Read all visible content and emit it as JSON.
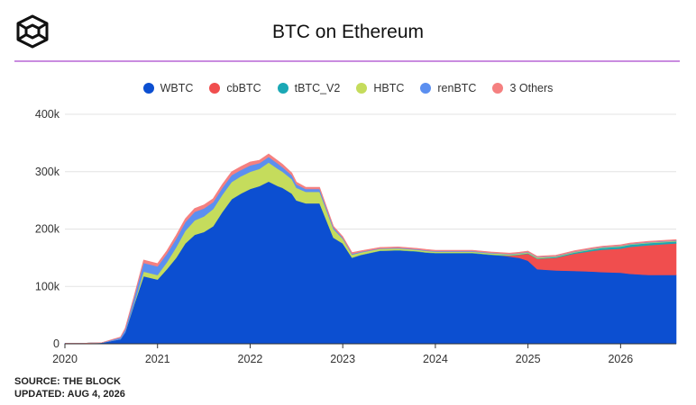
{
  "title": "BTC on Ethereum",
  "footer": {
    "source": "SOURCE: THE BLOCK",
    "updated": "UPDATED: AUG 4, 2026"
  },
  "colors": {
    "WBTC": "#0c4fd1",
    "cbBTC": "#f04e4e",
    "tBTC_V2": "#1aa8b5",
    "HBTC": "#c5dc5c",
    "renBTC": "#5b8ff0",
    "3 Others": "#f58080",
    "grid": "#e3e3e3",
    "accent_rule": "#c98ce0"
  },
  "chart_data": {
    "type": "area",
    "stacked": true,
    "title": "BTC on Ethereum",
    "xlabel": "",
    "ylabel": "",
    "ylim": [
      0,
      400000
    ],
    "xlim": [
      2020.0,
      2026.6
    ],
    "grid": true,
    "legend_position": "top",
    "y_ticks": [
      {
        "v": 0,
        "label": "0"
      },
      {
        "v": 100000,
        "label": "100k"
      },
      {
        "v": 200000,
        "label": "200k"
      },
      {
        "v": 300000,
        "label": "300k"
      },
      {
        "v": 400000,
        "label": "400k"
      }
    ],
    "x_ticks": [
      "2020",
      "2021",
      "2022",
      "2023",
      "2024",
      "2025",
      "2026"
    ],
    "x": [
      2020.0,
      2020.2,
      2020.4,
      2020.6,
      2020.65,
      2020.75,
      2020.85,
      2021.0,
      2021.1,
      2021.2,
      2021.3,
      2021.4,
      2021.5,
      2021.6,
      2021.7,
      2021.8,
      2021.9,
      2022.0,
      2022.1,
      2022.2,
      2022.3,
      2022.35,
      2022.45,
      2022.5,
      2022.6,
      2022.75,
      2022.9,
      2023.0,
      2023.1,
      2023.2,
      2023.4,
      2023.6,
      2023.8,
      2023.9,
      2024.0,
      2024.2,
      2024.4,
      2024.6,
      2024.7,
      2024.8,
      2024.9,
      2025.0,
      2025.1,
      2025.3,
      2025.5,
      2025.7,
      2025.8,
      2026.0,
      2026.1,
      2026.3,
      2026.6
    ],
    "series": [
      {
        "name": "WBTC",
        "values": [
          1000,
          1000,
          2000,
          8000,
          20000,
          70000,
          118000,
          112000,
          130000,
          150000,
          175000,
          190000,
          195000,
          205000,
          230000,
          252000,
          262000,
          270000,
          275000,
          283000,
          275000,
          272000,
          262000,
          250000,
          245000,
          245000,
          185000,
          175000,
          150000,
          155000,
          162000,
          163000,
          161000,
          159000,
          158000,
          158000,
          158000,
          155000,
          154000,
          152000,
          150000,
          145000,
          130000,
          128000,
          127000,
          126000,
          125000,
          124000,
          122000,
          120000,
          120000
        ]
      },
      {
        "name": "cbBTC",
        "values": [
          0,
          0,
          0,
          0,
          0,
          0,
          0,
          0,
          0,
          0,
          0,
          0,
          0,
          0,
          0,
          0,
          0,
          0,
          0,
          0,
          0,
          0,
          0,
          0,
          0,
          0,
          0,
          0,
          0,
          0,
          0,
          0,
          0,
          0,
          0,
          0,
          0,
          0,
          0,
          1500,
          5000,
          12000,
          18000,
          22000,
          30000,
          36000,
          39000,
          42000,
          47000,
          52000,
          55000
        ]
      },
      {
        "name": "tBTC_V2",
        "values": [
          0,
          0,
          0,
          0,
          0,
          0,
          0,
          0,
          0,
          0,
          0,
          0,
          0,
          0,
          0,
          0,
          0,
          0,
          0,
          0,
          0,
          0,
          0,
          0,
          0,
          0,
          0,
          0,
          500,
          500,
          500,
          500,
          500,
          500,
          700,
          700,
          700,
          700,
          800,
          800,
          800,
          900,
          900,
          1200,
          2000,
          2500,
          3000,
          3500,
          3500,
          3500,
          3500
        ]
      },
      {
        "name": "HBTC",
        "values": [
          0,
          0,
          0,
          0,
          0,
          2000,
          8000,
          8000,
          12000,
          18000,
          22000,
          25000,
          27000,
          30000,
          30000,
          30000,
          30000,
          30000,
          30000,
          33000,
          30000,
          28000,
          25000,
          22000,
          20000,
          20000,
          15000,
          8000,
          5000,
          4000,
          3000,
          3000,
          2500,
          2500,
          2000,
          2000,
          2000,
          2000,
          2000,
          1500,
          1500,
          1500,
          1500,
          1000,
          1000,
          1000,
          1000,
          1000,
          1000,
          1000,
          1000
        ]
      },
      {
        "name": "renBTC",
        "values": [
          0,
          0,
          0,
          3000,
          5000,
          10000,
          15000,
          15000,
          15000,
          15000,
          15000,
          15000,
          14000,
          12000,
          12000,
          12000,
          11000,
          11000,
          10000,
          10000,
          9000,
          8000,
          7000,
          6000,
          5000,
          5000,
          3000,
          2000,
          1500,
          1200,
          1000,
          1000,
          1000,
          1000,
          1000,
          1000,
          1000,
          1000,
          800,
          800,
          800,
          800,
          800,
          700,
          700,
          700,
          700,
          700,
          700,
          700,
          700
        ]
      },
      {
        "name": "3 Others",
        "values": [
          0,
          0,
          0,
          1000,
          2000,
          3000,
          5000,
          5000,
          5000,
          6000,
          6000,
          6000,
          6000,
          6000,
          6000,
          6000,
          6000,
          6000,
          5000,
          5000,
          5000,
          5000,
          4000,
          4000,
          3000,
          3000,
          2000,
          2000,
          2000,
          1500,
          1500,
          1500,
          1500,
          1500,
          1500,
          1500,
          1500,
          1500,
          1500,
          1500,
          1500,
          1500,
          1500,
          1500,
          1500,
          1500,
          1500,
          1500,
          1500,
          1500,
          1500
        ]
      }
    ]
  }
}
